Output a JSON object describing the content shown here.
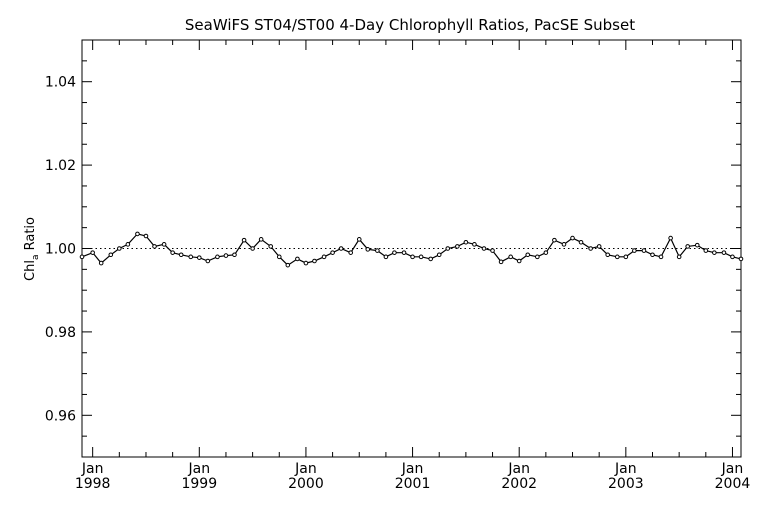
{
  "chart_data": {
    "type": "line",
    "title": "SeaWiFS ST04/ST00 4-Day Chlorophyll Ratios, PacSE Subset",
    "ylabel_main": "Chl",
    "ylabel_sub": "a",
    "ylabel_rest": " Ratio",
    "xlabel": "",
    "xlim": [
      1997.9,
      2004.08
    ],
    "ylim": [
      0.95,
      1.05
    ],
    "yticks": [
      "0.96",
      "0.98",
      "1.00",
      "1.02",
      "1.04"
    ],
    "ytick_values": [
      0.96,
      0.98,
      1.0,
      1.02,
      1.04
    ],
    "xticks": [
      {
        "value": 1998,
        "month": "Jan",
        "year": "1998"
      },
      {
        "value": 1999,
        "month": "Jan",
        "year": "1999"
      },
      {
        "value": 2000,
        "month": "Jan",
        "year": "2000"
      },
      {
        "value": 2001,
        "month": "Jan",
        "year": "2001"
      },
      {
        "value": 2002,
        "month": "Jan",
        "year": "2002"
      },
      {
        "value": 2003,
        "month": "Jan",
        "year": "2003"
      },
      {
        "value": 2004,
        "month": "Jan",
        "year": "2004"
      }
    ],
    "reference_line": 1.0,
    "grid": false,
    "series": [
      {
        "x": [
          1997.9,
          1998.0,
          1998.08,
          1998.17,
          1998.25,
          1998.33,
          1998.42,
          1998.5,
          1998.58,
          1998.67,
          1998.75,
          1998.83,
          1998.92,
          1999.0,
          1999.08,
          1999.17,
          1999.25,
          1999.33,
          1999.42,
          1999.5,
          1999.58,
          1999.67,
          1999.75,
          1999.83,
          1999.92,
          2000.0,
          2000.08,
          2000.17,
          2000.25,
          2000.33,
          2000.42,
          2000.5,
          2000.58,
          2000.67,
          2000.75,
          2000.83,
          2000.92,
          2001.0,
          2001.08,
          2001.17,
          2001.25,
          2001.33,
          2001.42,
          2001.5,
          2001.58,
          2001.67,
          2001.75,
          2001.83,
          2001.92,
          2002.0,
          2002.08,
          2002.17,
          2002.25,
          2002.33,
          2002.42,
          2002.5,
          2002.58,
          2002.67,
          2002.75,
          2002.83,
          2002.92,
          2003.0,
          2003.08,
          2003.17,
          2003.25,
          2003.33,
          2003.42,
          2003.5,
          2003.58,
          2003.67,
          2003.75,
          2003.83,
          2003.92,
          2004.0,
          2004.08
        ],
        "values": [
          0.998,
          0.999,
          0.9965,
          0.9985,
          1.0,
          1.001,
          1.0035,
          1.003,
          1.0005,
          1.001,
          0.999,
          0.9985,
          0.998,
          0.9978,
          0.997,
          0.998,
          0.9983,
          0.9985,
          1.002,
          1.0,
          1.0022,
          1.0005,
          0.998,
          0.996,
          0.9975,
          0.9965,
          0.997,
          0.998,
          0.999,
          1.0,
          0.999,
          1.0022,
          0.9998,
          0.9995,
          0.998,
          0.999,
          0.999,
          0.998,
          0.998,
          0.9975,
          0.9985,
          1.0,
          1.0005,
          1.0015,
          1.001,
          1.0,
          0.9995,
          0.9968,
          0.998,
          0.997,
          0.9985,
          0.998,
          0.999,
          1.002,
          1.001,
          1.0025,
          1.0015,
          1.0,
          1.0005,
          0.9985,
          0.998,
          0.998,
          0.9995,
          0.9995,
          0.9985,
          0.998,
          1.0025,
          0.998,
          1.0005,
          1.0008,
          0.9995,
          0.999,
          0.999,
          0.998,
          0.9975
        ]
      }
    ]
  }
}
